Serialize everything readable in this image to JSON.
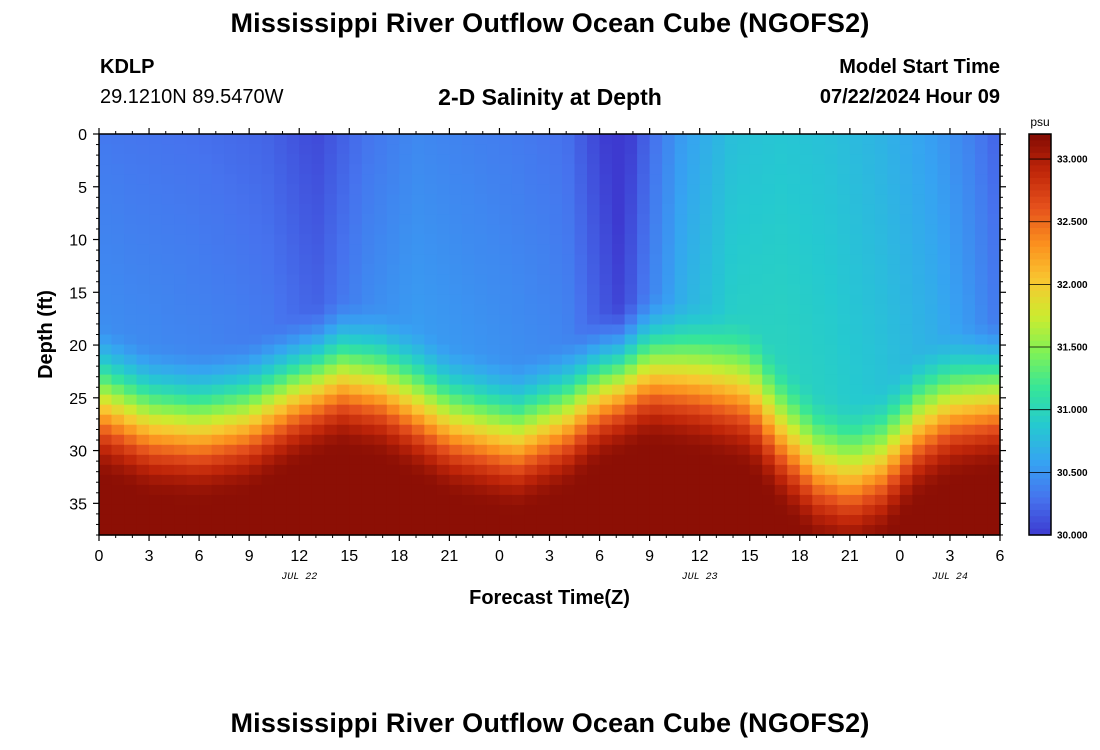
{
  "header": {
    "title": "Mississippi River Outflow Ocean Cube (NGOFS2)",
    "station_id": "KDLP",
    "coordinates": "29.1210N  89.5470W",
    "subtitle": "2-D Salinity at Depth",
    "model_start_label": "Model Start Time",
    "model_start_value": "07/22/2024 Hour 09"
  },
  "footer": {
    "title": "Mississippi River Outflow Ocean Cube (NGOFS2)"
  },
  "chart_data": {
    "type": "heatmap",
    "title": "2-D Salinity at Depth",
    "xlabel": "Forecast Time(Z)",
    "ylabel": "Depth (ft)",
    "x_tick_labels": [
      "0",
      "3",
      "6",
      "9",
      "12",
      "15",
      "18",
      "21",
      "0",
      "3",
      "6",
      "9",
      "12",
      "15",
      "18",
      "21",
      "0",
      "3",
      "6"
    ],
    "date_labels": [
      "JUL 22",
      "JUL 23",
      "JUL 24"
    ],
    "x_range_hours": [
      0,
      54
    ],
    "ylim": [
      0,
      38
    ],
    "y_ticks": [
      0,
      5,
      10,
      15,
      20,
      25,
      30,
      35
    ],
    "y_inverted": true,
    "colorbar": {
      "unit": "psu",
      "min": 30.0,
      "max": 33.2,
      "ticks": [
        "30.000",
        "30.500",
        "31.000",
        "31.500",
        "32.000",
        "32.500",
        "33.000"
      ],
      "colors": [
        "#3d3ad0",
        "#4673ee",
        "#36a3f2",
        "#25c9d0",
        "#35e59a",
        "#7ff256",
        "#cdeb2f",
        "#f9c630",
        "#fb8f1e",
        "#e5501c",
        "#bf2509",
        "#820b04"
      ]
    },
    "thermocline_depth_ft": [
      [
        0,
        21.5
      ],
      [
        3,
        23.5
      ],
      [
        6,
        24.0
      ],
      [
        9,
        23.0
      ],
      [
        12,
        20.5
      ],
      [
        14.5,
        19.0
      ],
      [
        17,
        20.0
      ],
      [
        21,
        23.5
      ],
      [
        25,
        25.0
      ],
      [
        28,
        23.0
      ],
      [
        30,
        20.5
      ],
      [
        33,
        18.5
      ],
      [
        36,
        19.5
      ],
      [
        39,
        21.0
      ],
      [
        41,
        25.0
      ],
      [
        43,
        28.0
      ],
      [
        45,
        29.0
      ],
      [
        47,
        27.5
      ],
      [
        49,
        24.0
      ],
      [
        51,
        22.0
      ],
      [
        54,
        21.0
      ]
    ],
    "surface_salinity_psu": [
      [
        0,
        30.33
      ],
      [
        6,
        30.28
      ],
      [
        10,
        30.22
      ],
      [
        13,
        30.08
      ],
      [
        16,
        30.3
      ],
      [
        19,
        30.42
      ],
      [
        22,
        30.38
      ],
      [
        25,
        30.34
      ],
      [
        28,
        30.28
      ],
      [
        30,
        30.05
      ],
      [
        31.3,
        29.92
      ],
      [
        33,
        30.25
      ],
      [
        35,
        30.55
      ],
      [
        38,
        30.8
      ],
      [
        41,
        30.85
      ],
      [
        44,
        30.8
      ],
      [
        47,
        30.7
      ],
      [
        50,
        30.55
      ],
      [
        52,
        30.4
      ],
      [
        54,
        30.2
      ]
    ],
    "bottom_salinity_psu": 33.15
  }
}
